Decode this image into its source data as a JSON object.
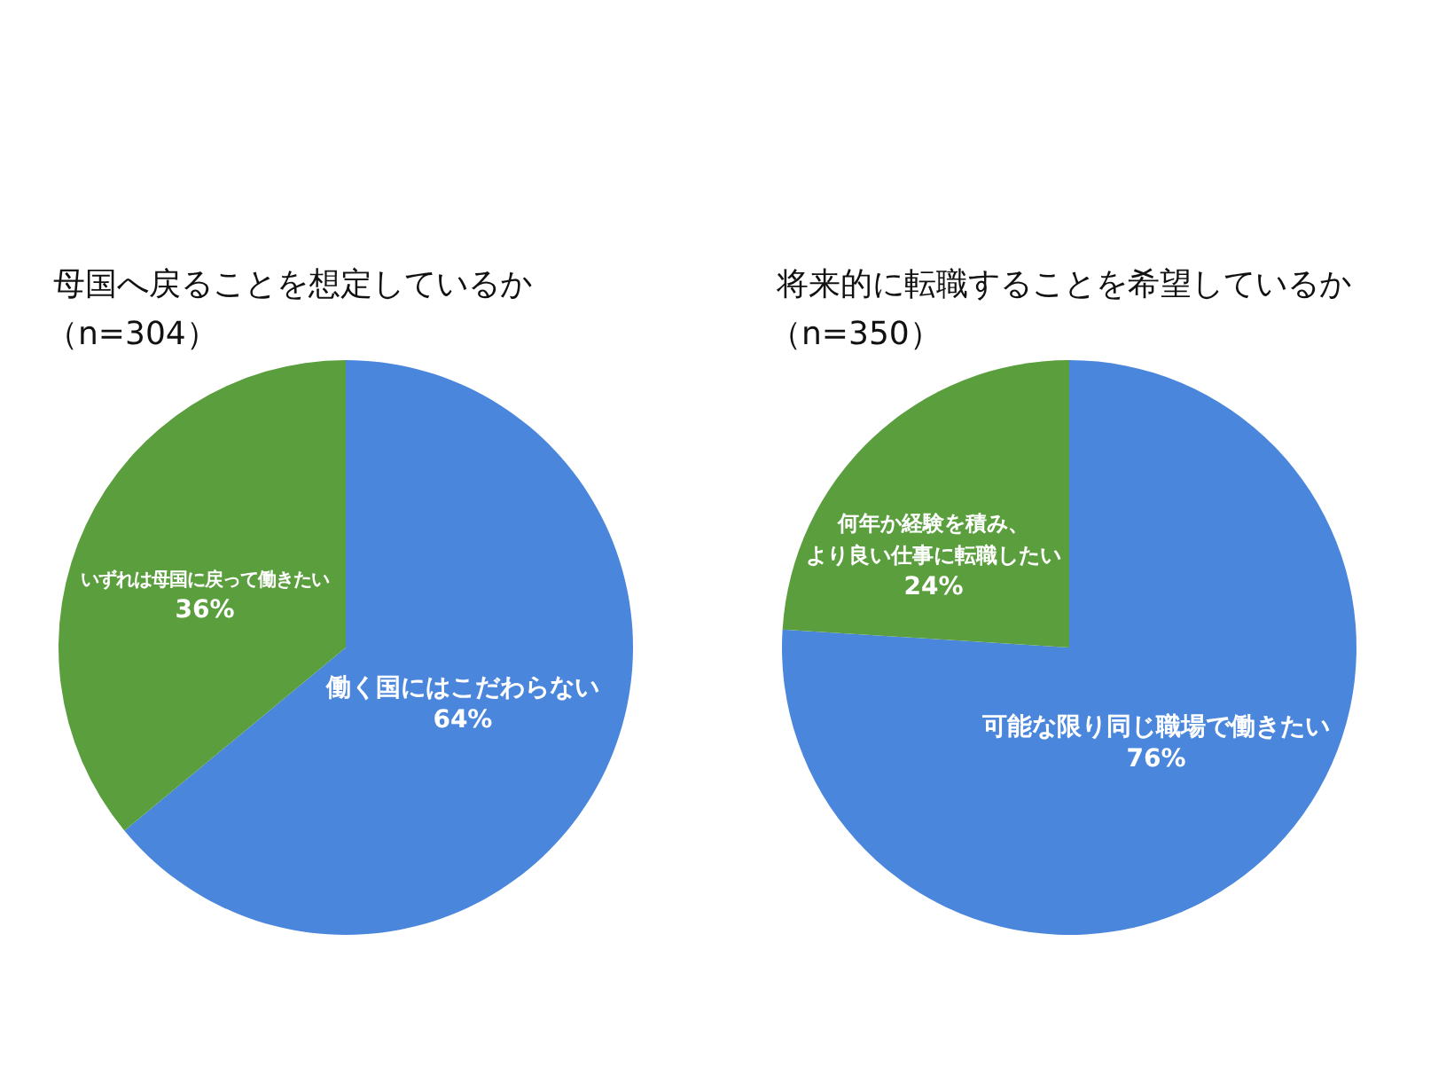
{
  "chart_data": [
    {
      "type": "pie",
      "title": "母国へ戻ることを想定しているか",
      "subtitle": "（n=304）",
      "categories": [
        "働く国にはこだわらない",
        "いずれは母国に戻って働きたい"
      ],
      "values": [
        64,
        36
      ],
      "value_labels": [
        "64%",
        "36%"
      ],
      "colors": [
        "#4a86dc",
        "#5a9e3e"
      ],
      "legend": false
    },
    {
      "type": "pie",
      "title": "将来的に転職することを希望しているか",
      "subtitle": "（n=350）",
      "categories": [
        "可能な限り同じ職場で働きたい",
        "何年か経験を積み、より良い仕事に転職したい"
      ],
      "values": [
        76,
        24
      ],
      "value_labels": [
        "76%",
        "24%"
      ],
      "colors": [
        "#4a86dc",
        "#5a9e3e"
      ],
      "legend": false
    }
  ]
}
